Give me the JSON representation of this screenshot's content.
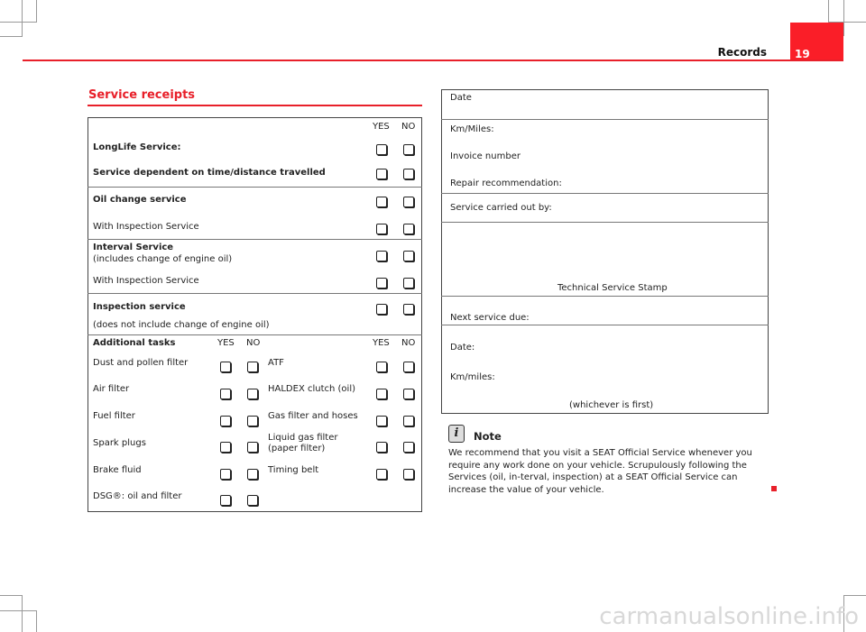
{
  "header": {
    "section": "Records",
    "page_number": "19",
    "accent": "#fa1e28"
  },
  "title": "Service receipts",
  "left_table": {
    "yes": "YES",
    "no": "NO",
    "longlife": "LongLife Service:",
    "time_distance": "Service dependent on time/distance travelled",
    "oil_change": "Oil change service",
    "with_inspection_1": "With Inspection Service",
    "interval": "Interval Service",
    "interval_note": "(includes change of engine oil)",
    "with_inspection_2": "With Inspection Service",
    "inspection": "Inspection service",
    "inspection_note": "(does not include change of engine oil)",
    "additional": "Additional tasks",
    "tasks_left": [
      "Dust and pollen filter",
      "Air filter",
      "Fuel filter",
      "Spark plugs",
      "Brake fluid",
      "DSG®: oil and filter"
    ],
    "tasks_right": [
      "ATF",
      "HALDEX clutch (oil)",
      "Gas filter and hoses",
      "Liquid gas filter (paper filter)",
      "Timing belt"
    ]
  },
  "right_box": {
    "date": "Date",
    "km_miles": "Km/Miles:",
    "invoice": "Invoice number",
    "repair": "Repair recommendation:",
    "carried_out": "Service carried out by:",
    "stamp": "Technical Service Stamp",
    "next_due": "Next service due:",
    "next_date": "Date:",
    "next_km": "Km/miles:",
    "whichever": "(whichever is first)"
  },
  "note": {
    "title": "Note",
    "icon": "info-icon",
    "text": "We recommend that you visit a SEAT Official Service whenever you require any work done on your vehicle. Scrupulously following the Services (oil, in-terval, inspection) at a SEAT Official Service can increase the value of your vehicle."
  },
  "watermark": "carmanualsonline.info"
}
